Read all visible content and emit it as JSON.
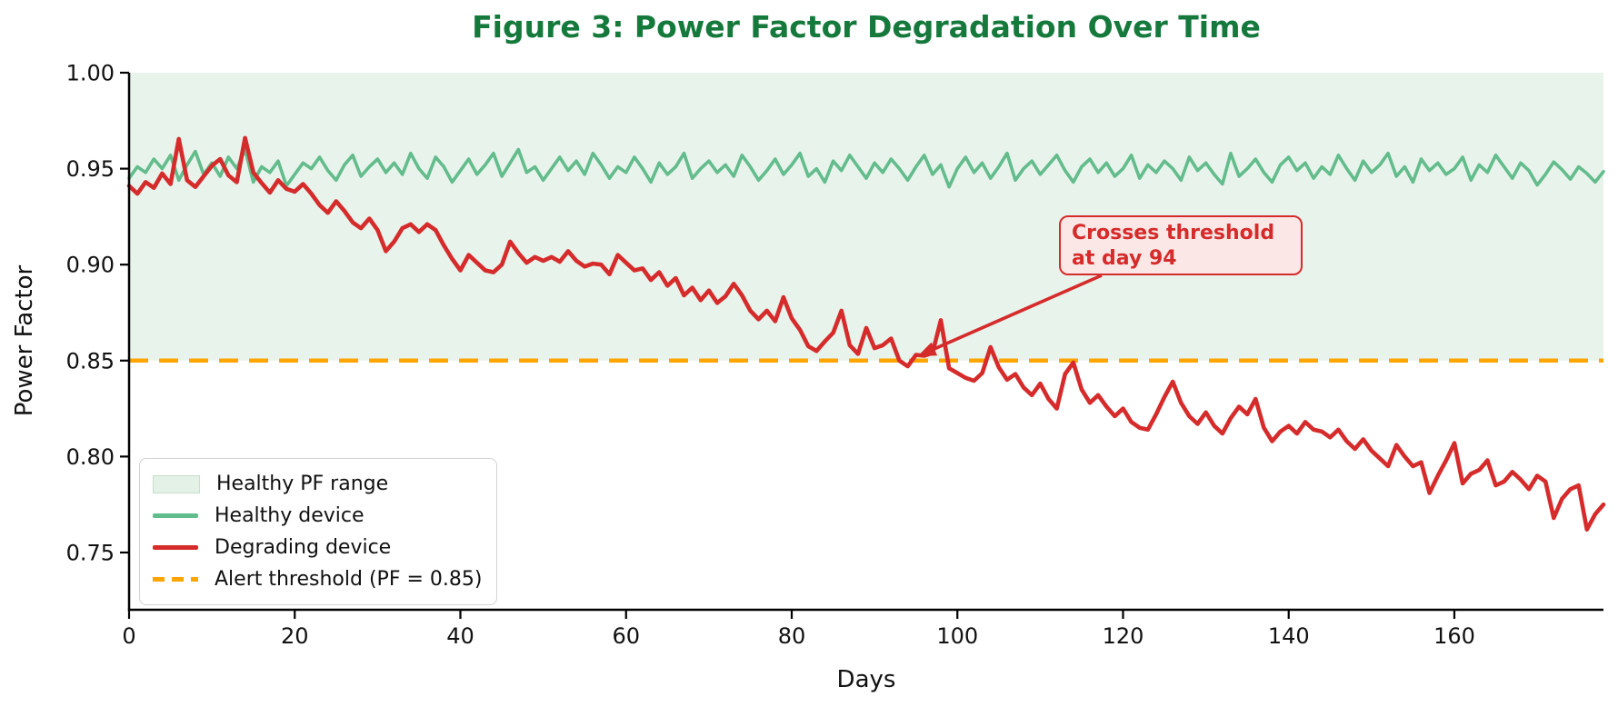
{
  "chart_data": {
    "type": "line",
    "title": "Figure 3: Power Factor Degradation Over Time",
    "title_color": "#15793c",
    "xlabel": "Days",
    "ylabel": "Power Factor",
    "xlim": [
      0,
      178
    ],
    "ylim": [
      0.72,
      1.0
    ],
    "x_ticks": [
      0,
      20,
      40,
      60,
      80,
      100,
      120,
      140,
      160
    ],
    "y_ticks": [
      1.0,
      0.95,
      0.9,
      0.85,
      0.8,
      0.75
    ],
    "grid": false,
    "legend_position": "lower left",
    "healthy_band": {
      "label": "Healthy PF range",
      "from": 0.85,
      "to": 1.0,
      "color": "#e8f3ec"
    },
    "threshold": {
      "label": "Alert threshold (PF = 0.85)",
      "value": 0.85,
      "color": "#ffa500",
      "style": "dashed"
    },
    "annotation": {
      "line1": "Crosses threshold",
      "line2": "at day 94",
      "target_day": 94,
      "target_pf": 0.85,
      "box_fill": "#fbe7e6",
      "color": "#d62b2b"
    },
    "legend": [
      {
        "label": "Healthy PF range",
        "swatch": "patch"
      },
      {
        "label": "Healthy device",
        "swatch": "line-green"
      },
      {
        "label": "Degrading device",
        "swatch": "line-red"
      },
      {
        "label": "Alert threshold (PF = 0.85)",
        "swatch": "line-dashed-orange"
      }
    ],
    "x_start": 0,
    "x_step": 1,
    "series": [
      {
        "name": "Healthy device",
        "color": "#63bc8b",
        "width": 3.6,
        "values": [
          0.945,
          0.951,
          0.948,
          0.955,
          0.95,
          0.957,
          0.944,
          0.952,
          0.959,
          0.947,
          0.953,
          0.946,
          0.956,
          0.95,
          0.96,
          0.943,
          0.951,
          0.948,
          0.954,
          0.941,
          0.947,
          0.953,
          0.95,
          0.956,
          0.949,
          0.944,
          0.952,
          0.957,
          0.946,
          0.951,
          0.955,
          0.948,
          0.953,
          0.947,
          0.958,
          0.95,
          0.945,
          0.956,
          0.951,
          0.943,
          0.949,
          0.955,
          0.947,
          0.952,
          0.958,
          0.946,
          0.953,
          0.96,
          0.948,
          0.951,
          0.944,
          0.95,
          0.956,
          0.949,
          0.954,
          0.947,
          0.958,
          0.952,
          0.945,
          0.951,
          0.948,
          0.956,
          0.95,
          0.943,
          0.953,
          0.947,
          0.951,
          0.958,
          0.945,
          0.95,
          0.954,
          0.948,
          0.952,
          0.946,
          0.957,
          0.951,
          0.944,
          0.949,
          0.955,
          0.947,
          0.952,
          0.958,
          0.946,
          0.95,
          0.943,
          0.954,
          0.949,
          0.957,
          0.951,
          0.945,
          0.953,
          0.948,
          0.955,
          0.95,
          0.944,
          0.951,
          0.957,
          0.947,
          0.952,
          0.9405,
          0.95,
          0.956,
          0.948,
          0.953,
          0.945,
          0.951,
          0.958,
          0.944,
          0.95,
          0.954,
          0.947,
          0.952,
          0.957,
          0.949,
          0.943,
          0.951,
          0.955,
          0.948,
          0.953,
          0.946,
          0.95,
          0.957,
          0.945,
          0.952,
          0.948,
          0.954,
          0.95,
          0.944,
          0.956,
          0.949,
          0.953,
          0.947,
          0.942,
          0.958,
          0.946,
          0.95,
          0.955,
          0.948,
          0.943,
          0.952,
          0.956,
          0.949,
          0.953,
          0.945,
          0.951,
          0.947,
          0.957,
          0.95,
          0.944,
          0.954,
          0.948,
          0.952,
          0.958,
          0.946,
          0.951,
          0.943,
          0.955,
          0.949,
          0.953,
          0.947,
          0.95,
          0.956,
          0.944,
          0.952,
          0.948,
          0.957,
          0.951,
          0.945,
          0.953,
          0.949,
          0.9415,
          0.947,
          0.9535,
          0.9495,
          0.9445,
          0.951,
          0.9475,
          0.943,
          0.9485
        ]
      },
      {
        "name": "Degrading device",
        "color": "#d62b2b",
        "width": 4.6,
        "values": [
          0.941,
          0.937,
          0.943,
          0.94,
          0.9475,
          0.942,
          0.9655,
          0.944,
          0.9405,
          0.946,
          0.9515,
          0.955,
          0.9465,
          0.943,
          0.966,
          0.948,
          0.9425,
          0.9375,
          0.944,
          0.9395,
          0.938,
          0.942,
          0.937,
          0.931,
          0.927,
          0.933,
          0.928,
          0.922,
          0.919,
          0.924,
          0.918,
          0.907,
          0.912,
          0.919,
          0.921,
          0.917,
          0.921,
          0.918,
          0.91,
          0.903,
          0.897,
          0.905,
          0.901,
          0.897,
          0.896,
          0.9,
          0.912,
          0.906,
          0.901,
          0.904,
          0.902,
          0.904,
          0.9015,
          0.907,
          0.902,
          0.899,
          0.9005,
          0.9,
          0.895,
          0.905,
          0.901,
          0.897,
          0.898,
          0.892,
          0.896,
          0.889,
          0.893,
          0.884,
          0.888,
          0.8815,
          0.8865,
          0.88,
          0.8835,
          0.89,
          0.884,
          0.876,
          0.8715,
          0.876,
          0.8705,
          0.883,
          0.872,
          0.866,
          0.8575,
          0.855,
          0.86,
          0.8645,
          0.876,
          0.858,
          0.8535,
          0.867,
          0.8565,
          0.858,
          0.8615,
          0.85,
          0.847,
          0.853,
          0.8525,
          0.854,
          0.871,
          0.846,
          0.8435,
          0.841,
          0.8395,
          0.8435,
          0.857,
          0.8465,
          0.84,
          0.843,
          0.836,
          0.832,
          0.838,
          0.83,
          0.825,
          0.843,
          0.849,
          0.835,
          0.828,
          0.832,
          0.826,
          0.821,
          0.825,
          0.818,
          0.815,
          0.814,
          0.822,
          0.831,
          0.839,
          0.828,
          0.821,
          0.817,
          0.823,
          0.816,
          0.812,
          0.82,
          0.826,
          0.822,
          0.83,
          0.815,
          0.808,
          0.813,
          0.816,
          0.812,
          0.818,
          0.814,
          0.813,
          0.81,
          0.814,
          0.808,
          0.804,
          0.809,
          0.803,
          0.799,
          0.795,
          0.806,
          0.8,
          0.795,
          0.797,
          0.781,
          0.79,
          0.798,
          0.807,
          0.786,
          0.791,
          0.793,
          0.798,
          0.785,
          0.787,
          0.792,
          0.788,
          0.783,
          0.79,
          0.787,
          0.768,
          0.778,
          0.783,
          0.785,
          0.762,
          0.77,
          0.775
        ]
      }
    ]
  }
}
